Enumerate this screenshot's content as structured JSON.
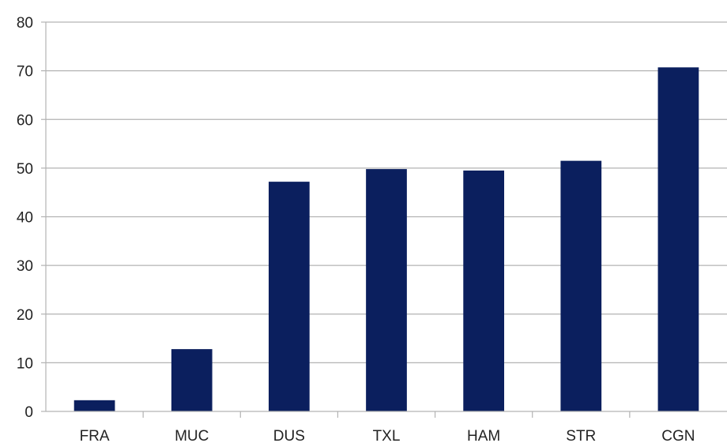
{
  "chart_data": {
    "type": "bar",
    "categories": [
      "FRA",
      "MUC",
      "DUS",
      "TXL",
      "HAM",
      "STR",
      "CGN"
    ],
    "values": [
      2.3,
      12.8,
      47.2,
      49.8,
      49.5,
      51.5,
      70.7
    ],
    "ylim": [
      0,
      80
    ],
    "yticks": [
      0,
      10,
      20,
      30,
      40,
      50,
      60,
      70,
      80
    ],
    "title": "",
    "xlabel": "",
    "ylabel": "",
    "grid": true,
    "legend": "none",
    "bar_color": "#0b1f5e"
  }
}
